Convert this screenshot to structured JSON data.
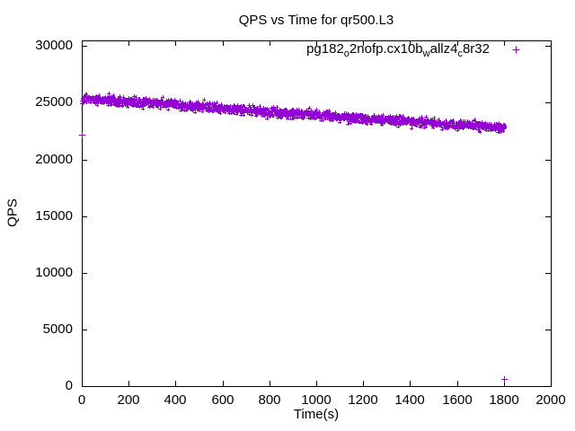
{
  "chart_data": {
    "type": "scatter",
    "title": "QPS vs Time for qr500.L3",
    "xlabel": "Time(s)",
    "ylabel": "QPS",
    "xlim": [
      0,
      2000
    ],
    "ylim": [
      0,
      30500
    ],
    "xticks": [
      0,
      200,
      400,
      600,
      800,
      1000,
      1200,
      1400,
      1600,
      1800,
      2000
    ],
    "yticks": [
      0,
      5000,
      10000,
      15000,
      20000,
      25000,
      30000
    ],
    "grid": false,
    "legend_position": "top-right-inside",
    "axis_color": "#000000",
    "background": "#ffffff",
    "series": [
      {
        "name": "pg182_o2nofp.cx10b_wallz4_c8r32",
        "display_segments": [
          {
            "t": "pg182"
          },
          {
            "s": "o"
          },
          {
            "t": "2nofp.cx10b"
          },
          {
            "s": "w"
          },
          {
            "t": "allz4"
          },
          {
            "s": "c"
          },
          {
            "t": "8r32"
          }
        ],
        "marker": "+",
        "color": "#9400D3",
        "sample_interval_s": 1,
        "t_range": [
          0,
          1805
        ],
        "trend": [
          [
            0,
            25350
          ],
          [
            200,
            25070
          ],
          [
            400,
            24830
          ],
          [
            600,
            24520
          ],
          [
            800,
            24170
          ],
          [
            1000,
            23920
          ],
          [
            1200,
            23600
          ],
          [
            1400,
            23360
          ],
          [
            1600,
            23060
          ],
          [
            1805,
            22800
          ]
        ],
        "noise_std_qps": 210,
        "outliers": [
          [
            0,
            22200
          ],
          [
            1800,
            600
          ]
        ]
      }
    ]
  }
}
